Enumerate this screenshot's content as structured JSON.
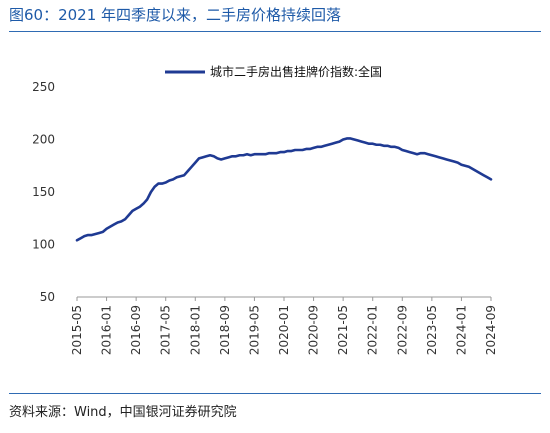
{
  "header": {
    "title": "图60：2021 年四季度以来，二手房价格持续回落"
  },
  "footer": {
    "source": "资料来源：Wind，中国银河证券研究院"
  },
  "colors": {
    "line": "#1f3a93",
    "rule": "#2f6bb3",
    "title": "#1e5aa8"
  },
  "chart_data": {
    "type": "line",
    "title": "",
    "xlabel": "",
    "ylabel": "",
    "ylim": [
      50,
      250
    ],
    "yticks": [
      50,
      100,
      150,
      200,
      250
    ],
    "xticks": [
      "2015-05",
      "2016-01",
      "2016-09",
      "2017-05",
      "2018-01",
      "2018-09",
      "2019-05",
      "2020-01",
      "2020-09",
      "2021-05",
      "2022-01",
      "2022-09",
      "2023-05",
      "2024-01",
      "2024-09"
    ],
    "legend": {
      "position": "top-center"
    },
    "grid": false,
    "series": [
      {
        "name": "城市二手房出售挂牌价指数:全国",
        "x": [
          "2015-05",
          "2015-06",
          "2015-07",
          "2015-08",
          "2015-09",
          "2015-10",
          "2015-11",
          "2015-12",
          "2016-01",
          "2016-02",
          "2016-03",
          "2016-04",
          "2016-05",
          "2016-06",
          "2016-07",
          "2016-08",
          "2016-09",
          "2016-10",
          "2016-11",
          "2016-12",
          "2017-01",
          "2017-02",
          "2017-03",
          "2017-04",
          "2017-05",
          "2017-06",
          "2017-07",
          "2017-08",
          "2017-09",
          "2017-10",
          "2017-11",
          "2017-12",
          "2018-01",
          "2018-02",
          "2018-03",
          "2018-04",
          "2018-05",
          "2018-06",
          "2018-07",
          "2018-08",
          "2018-09",
          "2018-10",
          "2018-11",
          "2018-12",
          "2019-01",
          "2019-02",
          "2019-03",
          "2019-04",
          "2019-05",
          "2019-06",
          "2019-07",
          "2019-08",
          "2019-09",
          "2019-10",
          "2019-11",
          "2019-12",
          "2020-01",
          "2020-02",
          "2020-03",
          "2020-04",
          "2020-05",
          "2020-06",
          "2020-07",
          "2020-08",
          "2020-09",
          "2020-10",
          "2020-11",
          "2020-12",
          "2021-01",
          "2021-02",
          "2021-03",
          "2021-04",
          "2021-05",
          "2021-06",
          "2021-07",
          "2021-08",
          "2021-09",
          "2021-10",
          "2021-11",
          "2021-12",
          "2022-01",
          "2022-02",
          "2022-03",
          "2022-04",
          "2022-05",
          "2022-06",
          "2022-07",
          "2022-08",
          "2022-09",
          "2022-10",
          "2022-11",
          "2022-12",
          "2023-01",
          "2023-02",
          "2023-03",
          "2023-04",
          "2023-05",
          "2023-06",
          "2023-07",
          "2023-08",
          "2023-09",
          "2023-10",
          "2023-11",
          "2023-12",
          "2024-01",
          "2024-02",
          "2024-03",
          "2024-04",
          "2024-05",
          "2024-06",
          "2024-07",
          "2024-08",
          "2024-09"
        ],
        "values": [
          104,
          106,
          108,
          109,
          109,
          110,
          111,
          112,
          115,
          117,
          119,
          121,
          122,
          124,
          128,
          132,
          134,
          136,
          139,
          143,
          150,
          155,
          158,
          158,
          159,
          161,
          162,
          164,
          165,
          166,
          170,
          174,
          178,
          182,
          183,
          184,
          185,
          184,
          182,
          181,
          182,
          183,
          184,
          184,
          185,
          185,
          186,
          185,
          186,
          186,
          186,
          186,
          187,
          187,
          187,
          188,
          188,
          189,
          189,
          190,
          190,
          190,
          191,
          191,
          192,
          193,
          193,
          194,
          195,
          196,
          197,
          198,
          200,
          201,
          201,
          200,
          199,
          198,
          197,
          196,
          196,
          195,
          195,
          194,
          194,
          193,
          193,
          192,
          190,
          189,
          188,
          187,
          186,
          187,
          187,
          186,
          185,
          184,
          183,
          182,
          181,
          180,
          179,
          178,
          176,
          175,
          174,
          172,
          170,
          168,
          166,
          164,
          162
        ]
      }
    ]
  }
}
